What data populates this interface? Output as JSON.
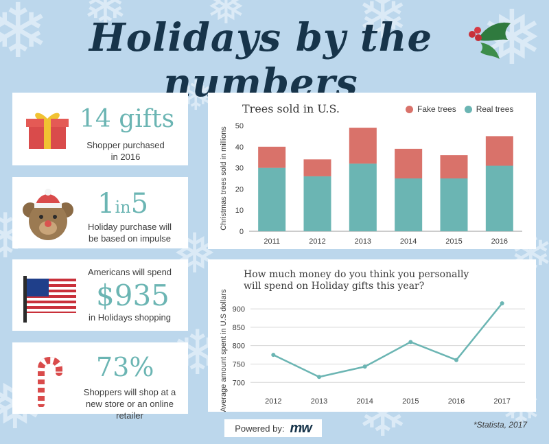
{
  "title": "Holidays by the numbers",
  "stats": [
    {
      "big": "14 gifts",
      "small1": "Shopper purchased",
      "small2": "in 2016",
      "icon": "gift-icon"
    },
    {
      "big_a": "1",
      "big_in": "in",
      "big_b": "5",
      "small1": "Holiday purchase will",
      "small2": "be based on impulse",
      "icon": "teddy-bear-icon"
    },
    {
      "pre": "Americans will spend",
      "big": "$935",
      "small1": "in Holidays shopping",
      "icon": "us-flag-icon"
    },
    {
      "big": "73%",
      "small1": "Shoppers will shop at a",
      "small2": "new store or an online retailer",
      "icon": "candy-cane-icon"
    }
  ],
  "footer": {
    "powered_by": "Powered by:",
    "logo": "mw",
    "source": "*Statista, 2017"
  },
  "colors": {
    "teal": "#6bb5b3",
    "coral": "#d9726a",
    "navy": "#17344a",
    "background": "#bcd7ec"
  },
  "chart_data": [
    {
      "type": "bar",
      "stacked": true,
      "title": "Trees sold in U.S.",
      "xlabel": "",
      "ylabel": "Christmas trees sold in millions",
      "categories": [
        "2011",
        "2012",
        "2013",
        "2014",
        "2015",
        "2016"
      ],
      "series": [
        {
          "name": "Real trees",
          "color": "#6bb5b3",
          "values": [
            30,
            26,
            32,
            25,
            25,
            31
          ]
        },
        {
          "name": "Fake trees",
          "color": "#d9726a",
          "values": [
            10,
            8,
            17,
            14,
            11,
            14
          ]
        }
      ],
      "ylim": [
        0,
        50
      ],
      "yticks": [
        0,
        10,
        20,
        30,
        40,
        50
      ],
      "legend": "top-right",
      "grid": false
    },
    {
      "type": "line",
      "title": "How much money do you think you personally will spend on Holiday gifts this year?",
      "title_line1": "How much money do you think you personally",
      "title_line2": "will spend on Holiday gifts this year?",
      "xlabel": "",
      "ylabel": "Average amount spent in U.S dollars",
      "categories": [
        "2012",
        "2013",
        "2014",
        "2015",
        "2016",
        "2017"
      ],
      "series": [
        {
          "color": "#6bb5b3",
          "values": [
            775,
            715,
            743,
            810,
            761,
            915
          ]
        }
      ],
      "ylim": [
        680,
        930
      ],
      "yticks": [
        700,
        750,
        800,
        850,
        900
      ],
      "grid": true
    }
  ]
}
